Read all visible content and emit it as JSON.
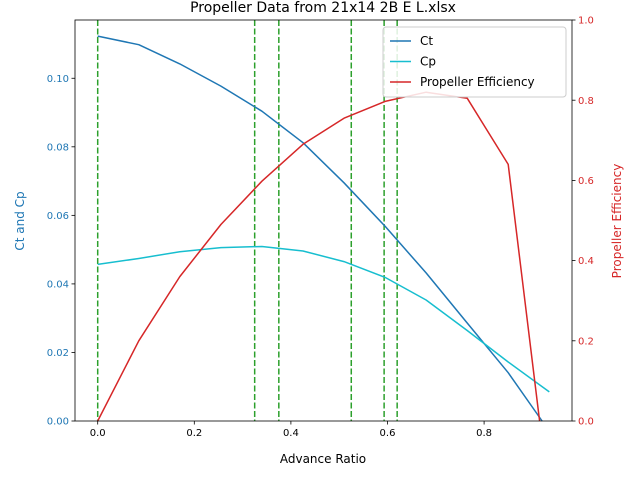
{
  "chart_data": {
    "type": "line",
    "title": "Propeller Data from 21x14 2B E L.xlsx",
    "xlabel": "Advance Ratio",
    "ylabel_left": "Ct and Cp",
    "ylabel_right": "Propeller Efficiency",
    "xlim": [
      -0.047,
      0.982
    ],
    "ylim_left": [
      0,
      0.117
    ],
    "ylim_right": [
      0,
      1.0
    ],
    "x_ticks": [
      0.0,
      0.2,
      0.4,
      0.6,
      0.8
    ],
    "x_tick_labels": [
      "0.0",
      "0.2",
      "0.4",
      "0.6",
      "0.8"
    ],
    "y_left_ticks": [
      0.0,
      0.02,
      0.04,
      0.06,
      0.08,
      0.1
    ],
    "y_left_tick_labels": [
      "0.00",
      "0.02",
      "0.04",
      "0.06",
      "0.08",
      "0.10"
    ],
    "y_right_ticks": [
      0.0,
      0.2,
      0.4,
      0.6,
      0.8,
      1.0
    ],
    "y_right_tick_labels": [
      "0.0",
      "0.2",
      "0.4",
      "0.6",
      "0.8",
      "1.0"
    ],
    "grid": false,
    "legend_placement": "top-right",
    "left_axis_color": "#1f77b4",
    "right_axis_color": "#d62728",
    "series": [
      {
        "name": "Ct",
        "axis": "left",
        "color": "#1f77b4",
        "x": [
          0.0,
          0.085,
          0.17,
          0.255,
          0.34,
          0.425,
          0.51,
          0.595,
          0.68,
          0.765,
          0.85,
          0.92
        ],
        "values": [
          0.1123,
          0.1098,
          0.1042,
          0.0977,
          0.0904,
          0.0812,
          0.0695,
          0.0568,
          0.0432,
          0.0286,
          0.0141,
          0.0
        ]
      },
      {
        "name": "Cp",
        "axis": "left",
        "color": "#17becf",
        "x": [
          0.0,
          0.085,
          0.17,
          0.255,
          0.34,
          0.425,
          0.51,
          0.595,
          0.68,
          0.765,
          0.85,
          0.935
        ],
        "values": [
          0.0457,
          0.0474,
          0.0494,
          0.0506,
          0.0509,
          0.0496,
          0.0465,
          0.0419,
          0.0353,
          0.0264,
          0.0172,
          0.0085
        ]
      },
      {
        "name": "Propeller Efficiency",
        "axis": "right",
        "color": "#d62728",
        "x": [
          0.0,
          0.085,
          0.17,
          0.255,
          0.34,
          0.425,
          0.51,
          0.595,
          0.68,
          0.765,
          0.85,
          0.915
        ],
        "values": [
          0.0,
          0.2,
          0.36,
          0.49,
          0.598,
          0.69,
          0.755,
          0.797,
          0.82,
          0.805,
          0.64,
          0.0
        ]
      }
    ],
    "vertical_lines": {
      "color": "#2ca02c",
      "style": "dashed",
      "x": [
        0.0,
        0.325,
        0.375,
        0.525,
        0.593,
        0.62
      ]
    }
  }
}
